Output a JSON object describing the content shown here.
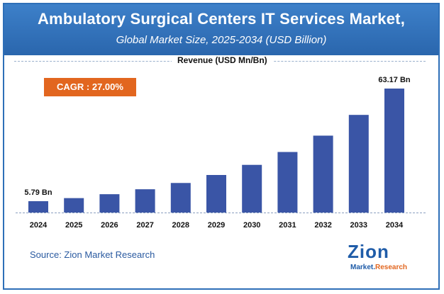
{
  "header": {
    "title": "Ambulatory Surgical Centers IT Services Market,",
    "subtitle": "Global Market Size, 2025-2034 (USD Billion)"
  },
  "legend": {
    "label": "Revenue (USD Mn/Bn)"
  },
  "cagr": {
    "label": "CAGR : 27.00%"
  },
  "source": {
    "text": "Source: Zion Market Research"
  },
  "logo": {
    "word": "Zion",
    "sub_prefix": "Market.",
    "sub_accent": "Research"
  },
  "colors": {
    "bar": "#3a55a6",
    "header": "#2e6fb8",
    "cagr": "#e2661f"
  },
  "chart_data": {
    "type": "bar",
    "categories": [
      "2024",
      "2025",
      "2026",
      "2027",
      "2028",
      "2029",
      "2030",
      "2031",
      "2032",
      "2033",
      "2034"
    ],
    "values": [
      5.79,
      7.35,
      9.34,
      11.86,
      15.06,
      19.13,
      24.29,
      30.85,
      39.18,
      49.75,
      63.17
    ],
    "data_labels": {
      "first": "5.79 Bn",
      "last": "63.17 Bn"
    },
    "ylabel": "Revenue (USD Mn/Bn)",
    "ylim": [
      0,
      63.17
    ],
    "grid": false
  }
}
